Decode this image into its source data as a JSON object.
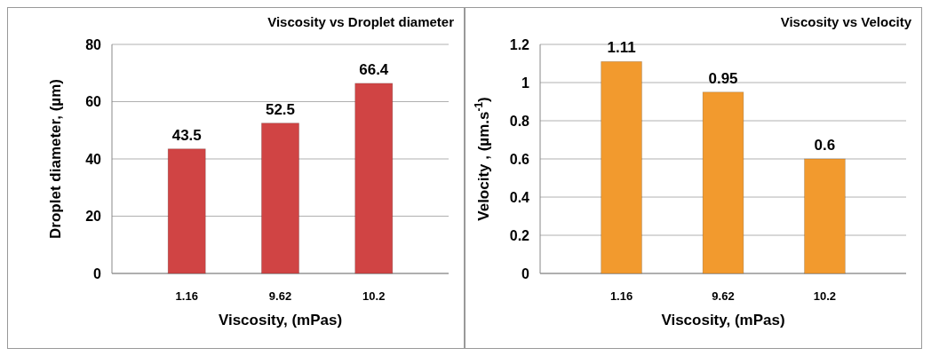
{
  "chart_data": [
    {
      "type": "bar",
      "title": "Viscosity vs Droplet diameter",
      "xlabel": "Viscosity, (mPas)",
      "ylabel": "Droplet diameter, (µm)",
      "categories": [
        "1.16",
        "9.62",
        "10.2"
      ],
      "values": [
        43.5,
        52.5,
        66.4
      ],
      "color": "#d04444",
      "ylim": [
        0,
        80
      ],
      "yticks": [
        0,
        20,
        40,
        60,
        80
      ],
      "grid": "y",
      "data_labels": true
    },
    {
      "type": "bar",
      "title": "Viscosity vs Velocity",
      "xlabel": "Viscosity, (mPas)",
      "ylabel": "Velocity , (µm.s$^{-1}$)",
      "categories": [
        "1.16",
        "9.62",
        "10.2"
      ],
      "values": [
        1.11,
        0.95,
        0.6
      ],
      "color": "#f29a2e",
      "ylim": [
        0,
        1.2
      ],
      "yticks": [
        0,
        0.2,
        0.4,
        0.6,
        0.8,
        1,
        1.2
      ],
      "grid": "y",
      "data_labels": true
    }
  ]
}
